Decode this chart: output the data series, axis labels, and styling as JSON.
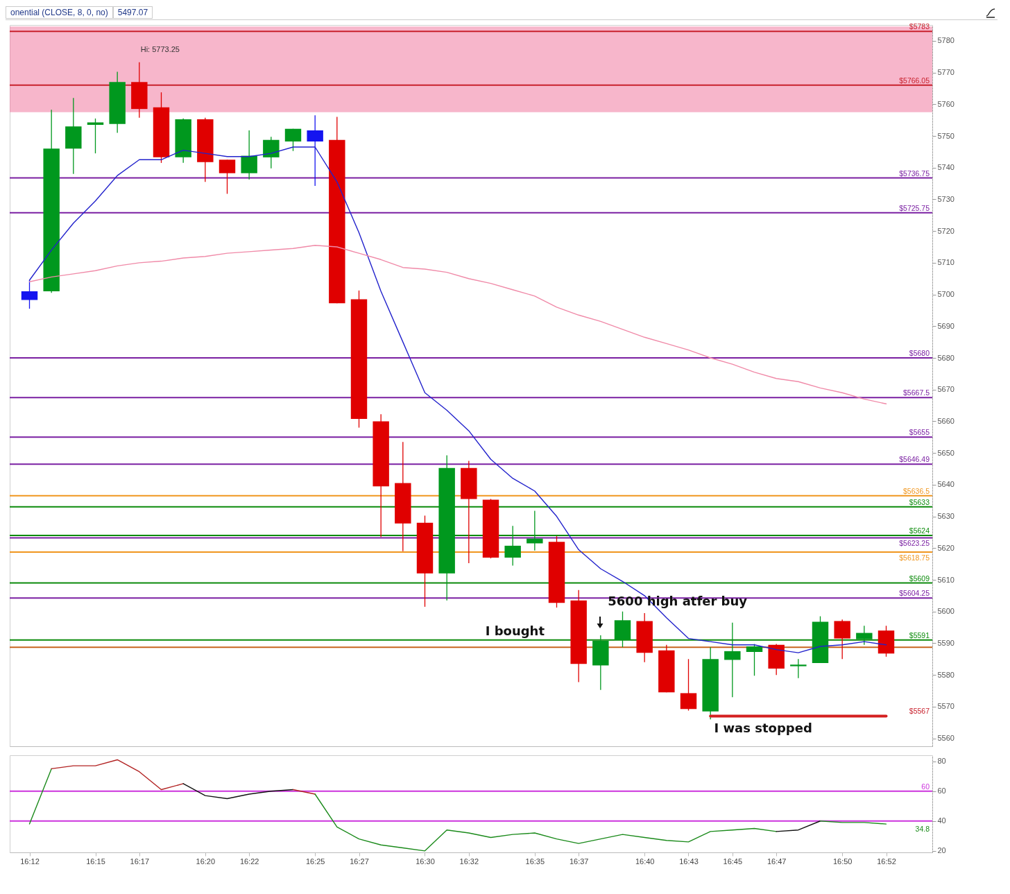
{
  "chart_data": [
    {
      "type": "candlestick",
      "categories": [
        "16:12",
        null,
        null,
        "16:15",
        null,
        "16:17",
        null,
        null,
        "16:20",
        null,
        "16:22",
        null,
        null,
        "16:25",
        null,
        "16:27",
        null,
        null,
        "16:30",
        null,
        "16:32",
        null,
        null,
        "16:35",
        null,
        "16:37",
        null,
        null,
        "16:40",
        null,
        "16:43",
        null,
        "16:45",
        null,
        "16:47",
        null,
        null,
        "16:50",
        null,
        "16:52"
      ],
      "ohlc": [
        [
          5701,
          5704.5,
          5695.5,
          5698.25
        ],
        [
          5701,
          5758.25,
          5700.5,
          5746
        ],
        [
          5746,
          5762,
          5738,
          5753
        ],
        [
          5753.5,
          5755.5,
          5744.5,
          5754.25
        ],
        [
          5753.75,
          5770.25,
          5751,
          5767
        ],
        [
          5767,
          5773.25,
          5755.75,
          5758.5
        ],
        [
          5759,
          5763.75,
          5741.5,
          5743.25
        ],
        [
          5743.25,
          5755.5,
          5741.5,
          5755.25
        ],
        [
          5755.25,
          5755.75,
          5735.5,
          5741.75
        ],
        [
          5742.5,
          5742.5,
          5731.75,
          5738.25
        ],
        [
          5738.25,
          5751.75,
          5736.25,
          5743.75
        ],
        [
          5743.25,
          5749.75,
          5739.75,
          5748.75
        ],
        [
          5748.25,
          5752.25,
          5745.25,
          5752.25
        ],
        [
          5751.75,
          5756.5,
          5734.25,
          5748.25
        ],
        [
          5748.75,
          5756,
          5697.25,
          5697.25
        ],
        [
          5698.5,
          5701.25,
          5658,
          5660.75
        ],
        [
          5660,
          5662.25,
          5623.5,
          5639.5
        ],
        [
          5640.5,
          5653.5,
          5619,
          5627.75
        ],
        [
          5628,
          5630.25,
          5601.5,
          5612
        ],
        [
          5612,
          5649.25,
          5603.5,
          5645.25
        ],
        [
          5645.25,
          5647.5,
          5615.25,
          5635.5
        ],
        [
          5635.25,
          5635.5,
          5616.75,
          5617
        ],
        [
          5617,
          5627,
          5614.5,
          5620.75
        ],
        [
          5621.5,
          5631.75,
          5619.25,
          5623
        ],
        [
          5622,
          5623.75,
          5601.25,
          5602.75
        ],
        [
          5603.5,
          5606.75,
          5577.75,
          5583.5
        ],
        [
          5583,
          5592.5,
          5575.25,
          5590.75
        ],
        [
          5591,
          5600,
          5588.75,
          5597.25
        ],
        [
          5597,
          5599.5,
          5584,
          5587
        ],
        [
          5587.75,
          5589.5,
          5574.5,
          5574.5
        ],
        [
          5574.25,
          5585,
          5568.75,
          5569.25
        ],
        [
          5568.5,
          5588.75,
          5566,
          5585
        ],
        [
          5584.75,
          5596.5,
          5573,
          5587.5
        ],
        [
          5587.25,
          5589.75,
          5579.75,
          5589
        ],
        [
          5589.5,
          5589.75,
          5580,
          5582
        ],
        [
          5582.75,
          5585,
          5579,
          5583.25
        ],
        [
          5583.75,
          5598.5,
          5583.75,
          5596.75
        ],
        [
          5597,
          5597.5,
          5585,
          5591.5
        ],
        [
          5591.25,
          5595.5,
          5589.5,
          5593.25
        ],
        [
          5594,
          5595.5,
          5585.75,
          5586.75
        ]
      ],
      "colors": [
        "#1414f0",
        "#00981e",
        "#00981e",
        "#00981e",
        "#00981e",
        "#e00000",
        "#e00000",
        "#00981e",
        "#e00000",
        "#e00000",
        "#00981e",
        "#00981e",
        "#00981e",
        "#1414f0",
        "#e00000",
        "#e00000",
        "#e00000",
        "#e00000",
        "#e00000",
        "#00981e",
        "#e00000",
        "#e00000",
        "#00981e",
        "#00981e",
        "#e00000",
        "#e00000",
        "#00981e",
        "#00981e",
        "#e00000",
        "#e00000",
        "#e00000",
        "#00981e",
        "#00981e",
        "#00981e",
        "#e00000",
        "#00981e",
        "#00981e",
        "#e00000",
        "#00981e",
        "#e00000"
      ],
      "series": [
        {
          "type": "line",
          "color": "#2222cc",
          "values": [
            5704.5,
            5714,
            5722.5,
            5729.5,
            5737.5,
            5742.5,
            5742.5,
            5745.5,
            5744.5,
            5743.5,
            5743.5,
            5744.5,
            5746.5,
            5746.5,
            5735.5,
            5719.5,
            5701,
            5685,
            5669,
            5663.5,
            5657,
            5648,
            5642,
            5638,
            5630,
            5619.5,
            5613.5,
            5609.5,
            5605,
            5598,
            5591.5,
            5590.5,
            5589.5,
            5589.5,
            5588,
            5587,
            5589,
            5589.5,
            5590.5,
            5589.5
          ]
        },
        {
          "type": "line",
          "color": "#f08aa8",
          "values": [
            5704,
            5705.5,
            5706.5,
            5707.5,
            5709,
            5710,
            5710.5,
            5711.5,
            5712,
            5713,
            5713.5,
            5714,
            5714.5,
            5715.5,
            5715,
            5713,
            5711,
            5708.5,
            5708,
            5707,
            5705,
            5703.5,
            5701.5,
            5699.5,
            5696,
            5693.5,
            5691.5,
            5689,
            5686.5,
            5684.5,
            5682.5,
            5680,
            5678,
            5675.5,
            5673.5,
            5672.5,
            5670.5,
            5669,
            5667,
            5665.5
          ]
        },
        {
          "type": "line",
          "color": "#d42020",
          "values": [
            null,
            null,
            null,
            null,
            null,
            null,
            null,
            null,
            null,
            null,
            null,
            null,
            null,
            null,
            null,
            null,
            null,
            null,
            null,
            null,
            null,
            null,
            null,
            null,
            null,
            null,
            null,
            null,
            null,
            null,
            null,
            5567,
            5567,
            5567,
            5567,
            5567,
            5567,
            5567,
            5567,
            5567
          ]
        }
      ],
      "bands": [
        {
          "axis": "y",
          "from": 5757.5,
          "to": 5784.5,
          "color": "#f07aa0"
        }
      ],
      "ref_lines": [
        {
          "axis": "y",
          "value": 5783,
          "label": "$5783",
          "color": "#c8202c"
        },
        {
          "axis": "y",
          "value": 5766.05,
          "label": "$5766.05",
          "color": "#c8202c"
        },
        {
          "axis": "y",
          "value": 5736.75,
          "label": "$5736.75",
          "color": "#7a1fa2"
        },
        {
          "axis": "y",
          "value": 5725.75,
          "label": "$5725.75",
          "color": "#7a1fa2"
        },
        {
          "axis": "y",
          "value": 5680,
          "label": "$5680",
          "color": "#7a1fa2"
        },
        {
          "axis": "y",
          "value": 5667.5,
          "label": "$5667.5",
          "color": "#7a1fa2"
        },
        {
          "axis": "y",
          "value": 5655,
          "label": "$5655",
          "color": "#7a1fa2"
        },
        {
          "axis": "y",
          "value": 5646.49,
          "label": "$5646.49",
          "color": "#7a1fa2"
        },
        {
          "axis": "y",
          "value": 5636.5,
          "label": "$5636.5",
          "color": "#f0961e"
        },
        {
          "axis": "y",
          "value": 5633,
          "label": "$5633",
          "color": "#0a8a0a"
        },
        {
          "axis": "y",
          "value": 5624,
          "label": "$5624",
          "color": "#0a8a0a"
        },
        {
          "axis": "y",
          "value": 5623.25,
          "label": "$5623.25",
          "color": "#7a1fa2"
        },
        {
          "axis": "y",
          "value": 5618.75,
          "label": "$5618.75",
          "color": "#f0961e"
        },
        {
          "axis": "y",
          "value": 5609,
          "label": "$5609",
          "color": "#0a8a0a"
        },
        {
          "axis": "y",
          "value": 5604.25,
          "label": "$5604.25",
          "color": "#7a1fa2"
        },
        {
          "axis": "y",
          "value": 5591,
          "label": "$5591",
          "color": "#0a8a0a"
        },
        {
          "axis": "y",
          "value": 5588.75,
          "color": "#c8641e"
        }
      ],
      "annotations": [
        "onential (CLOSE, 8, 0, no)",
        "5497.07",
        {
          "text": "Hi: 5773.25",
          "x": "16:17",
          "y": 5773.25
        },
        {
          "text": "I bought",
          "y": 5591
        },
        "5600 high atfer buy",
        {
          "text": "I was stopped",
          "y": 5567
        },
        "$5567"
      ],
      "ylim": [
        5557.5,
        5785
      ],
      "yticks": [
        5560,
        5570,
        5580,
        5590,
        5600,
        5610,
        5620,
        5630,
        5640,
        5650,
        5660,
        5670,
        5680,
        5690,
        5700,
        5710,
        5720,
        5730,
        5740,
        5750,
        5760,
        5770,
        5780
      ],
      "tick_labels": "y"
    },
    {
      "type": "line",
      "categories": [
        "16:12",
        null,
        null,
        "16:15",
        null,
        "16:17",
        null,
        null,
        "16:20",
        null,
        "16:22",
        null,
        null,
        "16:25",
        null,
        "16:27",
        null,
        null,
        "16:30",
        null,
        "16:32",
        null,
        null,
        "16:35",
        null,
        "16:37",
        null,
        null,
        "16:40",
        null,
        "16:43",
        null,
        "16:45",
        null,
        "16:47",
        null,
        null,
        "16:50",
        null,
        "16:52"
      ],
      "series": [
        {
          "color": "#1a8a1a",
          "values": [
            38,
            75,
            null,
            null,
            null,
            null,
            null,
            null,
            null,
            null,
            null,
            null,
            null,
            null,
            null,
            null,
            null,
            null,
            null,
            null,
            null,
            null,
            null,
            null,
            null,
            null,
            null,
            null,
            null,
            null,
            null,
            null,
            null,
            null,
            null,
            null,
            null,
            null,
            null,
            null
          ]
        },
        {
          "color": "#b22222",
          "values": [
            null,
            75,
            77,
            77,
            81,
            73,
            61,
            65,
            null,
            null,
            null,
            null,
            null,
            null,
            null,
            null,
            null,
            null,
            null,
            null,
            null,
            null,
            null,
            null,
            null,
            null,
            null,
            null,
            null,
            null,
            null,
            null,
            null,
            null,
            null,
            null,
            null,
            null,
            null,
            null
          ]
        },
        {
          "color": "#111111",
          "values": [
            null,
            null,
            null,
            null,
            null,
            null,
            null,
            65,
            57,
            55,
            58,
            60,
            61,
            null,
            null,
            null,
            null,
            null,
            null,
            null,
            null,
            null,
            null,
            null,
            null,
            null,
            null,
            null,
            null,
            null,
            null,
            null,
            null,
            null,
            null,
            null,
            null,
            null,
            null,
            null
          ]
        },
        {
          "color": "#b22222",
          "values": [
            null,
            null,
            null,
            null,
            null,
            null,
            null,
            null,
            null,
            null,
            null,
            null,
            61,
            58,
            null,
            null,
            null,
            null,
            null,
            null,
            null,
            null,
            null,
            null,
            null,
            null,
            null,
            null,
            null,
            null,
            null,
            null,
            null,
            null,
            null,
            null,
            null,
            null,
            null,
            null
          ]
        },
        {
          "color": "#1a8a1a",
          "values": [
            null,
            null,
            null,
            null,
            null,
            null,
            null,
            null,
            null,
            null,
            null,
            null,
            null,
            58,
            36,
            28,
            24,
            22,
            20,
            34,
            32,
            29,
            31,
            32,
            28,
            25,
            28,
            31,
            29,
            27,
            26,
            33,
            34,
            35,
            33,
            null,
            null,
            null,
            null,
            null
          ]
        },
        {
          "color": "#111111",
          "values": [
            null,
            null,
            null,
            null,
            null,
            null,
            null,
            null,
            null,
            null,
            null,
            null,
            null,
            null,
            null,
            null,
            null,
            null,
            null,
            null,
            null,
            null,
            null,
            null,
            null,
            null,
            null,
            null,
            null,
            null,
            null,
            null,
            null,
            null,
            33,
            34,
            40,
            null,
            null,
            null
          ]
        },
        {
          "color": "#1a8a1a",
          "values": [
            null,
            null,
            null,
            null,
            null,
            null,
            null,
            null,
            null,
            null,
            null,
            null,
            null,
            null,
            null,
            null,
            null,
            null,
            null,
            null,
            null,
            null,
            null,
            null,
            null,
            null,
            null,
            null,
            null,
            null,
            null,
            null,
            null,
            null,
            null,
            null,
            40,
            39,
            39,
            38
          ]
        }
      ],
      "ref_lines": [
        {
          "axis": "y",
          "value": 60,
          "label": "60",
          "color": "#cc33dd"
        },
        {
          "axis": "y",
          "value": 40,
          "color": "#cc33dd"
        }
      ],
      "annotations": [
        "34.8"
      ],
      "ylim": [
        19,
        84
      ],
      "yticks": [
        20,
        40,
        60,
        80
      ]
    }
  ]
}
